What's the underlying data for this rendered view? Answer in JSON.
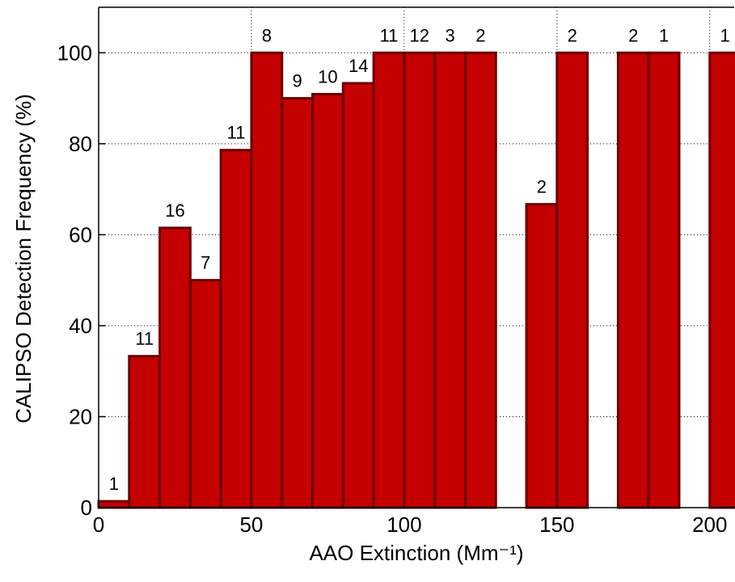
{
  "chart_data": {
    "type": "histogram",
    "xlabel": "AAO Extinction (Mm⁻¹)",
    "ylabel": "CALIPSO Detection Frequency (%)",
    "bins": [
      0,
      10,
      20,
      30,
      40,
      50,
      60,
      70,
      80,
      90,
      100,
      110,
      120,
      130,
      140,
      150,
      160,
      170,
      180,
      190,
      200,
      210
    ],
    "values": [
      1.4,
      33.3,
      61.5,
      50,
      78.6,
      100,
      90,
      90.9,
      93.3,
      100,
      100,
      100,
      100,
      0,
      66.7,
      100,
      0,
      100,
      100,
      0,
      100
    ],
    "counts": [
      1,
      11,
      16,
      7,
      11,
      8,
      9,
      10,
      14,
      11,
      12,
      3,
      2,
      null,
      2,
      2,
      null,
      2,
      1,
      null,
      1
    ],
    "color": "#c40000",
    "xlim": [
      0,
      208
    ],
    "ylim": [
      0,
      110
    ],
    "xticks": [
      0,
      50,
      100,
      150,
      200
    ],
    "yticks": [
      0,
      20,
      40,
      60,
      80,
      100
    ],
    "grid": true
  }
}
